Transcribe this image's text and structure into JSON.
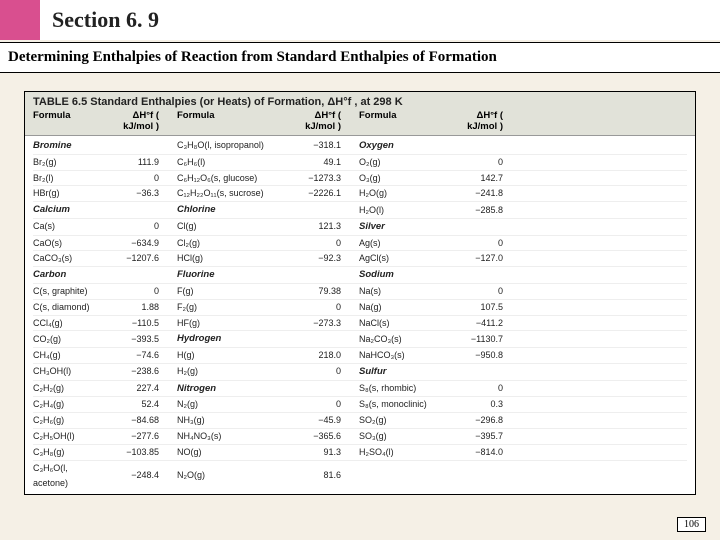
{
  "header": {
    "section": "Section 6. 9"
  },
  "subheader": "Determining Enthalpies of Reaction from Standard Enthalpies of Formation",
  "tableTitle": "TABLE 6.5  Standard Enthalpies (or Heats) of Formation, ΔH°f , at 298 K",
  "head": {
    "formula": "Formula",
    "value": "ΔH°f ( kJ/mol )"
  },
  "pageNum": "106",
  "rows": [
    {
      "c1f": "Bromine",
      "c1v": "",
      "cat1": true,
      "c2f": "C₃H₈O(l, isopropanol)",
      "c2v": "−318.1",
      "c3f": "Oxygen",
      "c3v": "",
      "cat3": true
    },
    {
      "c1f": "Br₂(g)",
      "c1v": "111.9",
      "c2f": "C₆H₆(l)",
      "c2v": "49.1",
      "c3f": "O₂(g)",
      "c3v": "0"
    },
    {
      "c1f": "Br₂(l)",
      "c1v": "0",
      "c2f": "C₆H₁₂O₆(s, glucose)",
      "c2v": "−1273.3",
      "c3f": "O₃(g)",
      "c3v": "142.7"
    },
    {
      "c1f": "HBr(g)",
      "c1v": "−36.3",
      "c2f": "C₁₂H₂₂O₁₁(s, sucrose)",
      "c2v": "−2226.1",
      "c3f": "H₂O(g)",
      "c3v": "−241.8"
    },
    {
      "c1f": "Calcium",
      "c1v": "",
      "cat1": true,
      "c2f": "Chlorine",
      "c2v": "",
      "cat2": true,
      "c3f": "H₂O(l)",
      "c3v": "−285.8"
    },
    {
      "c1f": "Ca(s)",
      "c1v": "0",
      "c2f": "Cl(g)",
      "c2v": "121.3",
      "c3f": "Silver",
      "c3v": "",
      "cat3": true
    },
    {
      "c1f": "CaO(s)",
      "c1v": "−634.9",
      "c2f": "Cl₂(g)",
      "c2v": "0",
      "c3f": "Ag(s)",
      "c3v": "0"
    },
    {
      "c1f": "CaCO₃(s)",
      "c1v": "−1207.6",
      "c2f": "HCl(g)",
      "c2v": "−92.3",
      "c3f": "AgCl(s)",
      "c3v": "−127.0"
    },
    {
      "c1f": "Carbon",
      "c1v": "",
      "cat1": true,
      "c2f": "Fluorine",
      "c2v": "",
      "cat2": true,
      "c3f": "Sodium",
      "c3v": "",
      "cat3": true
    },
    {
      "c1f": "C(s, graphite)",
      "c1v": "0",
      "c2f": "F(g)",
      "c2v": "79.38",
      "c3f": "Na(s)",
      "c3v": "0"
    },
    {
      "c1f": "C(s, diamond)",
      "c1v": "1.88",
      "c2f": "F₂(g)",
      "c2v": "0",
      "c3f": "Na(g)",
      "c3v": "107.5"
    },
    {
      "c1f": "CCl₄(g)",
      "c1v": "−110.5",
      "c2f": "HF(g)",
      "c2v": "−273.3",
      "c3f": "NaCl(s)",
      "c3v": "−411.2"
    },
    {
      "c1f": "CO₂(g)",
      "c1v": "−393.5",
      "c2f": "Hydrogen",
      "c2v": "",
      "cat2": true,
      "c3f": "Na₂CO₃(s)",
      "c3v": "−1130.7"
    },
    {
      "c1f": "CH₄(g)",
      "c1v": "−74.6",
      "c2f": "H(g)",
      "c2v": "218.0",
      "c3f": "NaHCO₃(s)",
      "c3v": "−950.8"
    },
    {
      "c1f": "CH₃OH(l)",
      "c1v": "−238.6",
      "c2f": "H₂(g)",
      "c2v": "0",
      "c3f": "Sulfur",
      "c3v": "",
      "cat3": true
    },
    {
      "c1f": "C₂H₂(g)",
      "c1v": "227.4",
      "c2f": "Nitrogen",
      "c2v": "",
      "cat2": true,
      "c3f": "S₈(s, rhombic)",
      "c3v": "0"
    },
    {
      "c1f": "C₂H₄(g)",
      "c1v": "52.4",
      "c2f": "N₂(g)",
      "c2v": "0",
      "c3f": "S₈(s, monoclinic)",
      "c3v": "0.3"
    },
    {
      "c1f": "C₂H₆(g)",
      "c1v": "−84.68",
      "c2f": "NH₃(g)",
      "c2v": "−45.9",
      "c3f": "SO₂(g)",
      "c3v": "−296.8"
    },
    {
      "c1f": "C₂H₅OH(l)",
      "c1v": "−277.6",
      "c2f": "NH₄NO₃(s)",
      "c2v": "−365.6",
      "c3f": "SO₃(g)",
      "c3v": "−395.7"
    },
    {
      "c1f": "C₃H₈(g)",
      "c1v": "−103.85",
      "c2f": "NO(g)",
      "c2v": "91.3",
      "c3f": "H₂SO₄(l)",
      "c3v": "−814.0"
    },
    {
      "c1f": "C₃H₆O(l, acetone)",
      "c1v": "−248.4",
      "c2f": "N₂O(g)",
      "c2v": "81.6",
      "c3f": "",
      "c3v": ""
    }
  ]
}
